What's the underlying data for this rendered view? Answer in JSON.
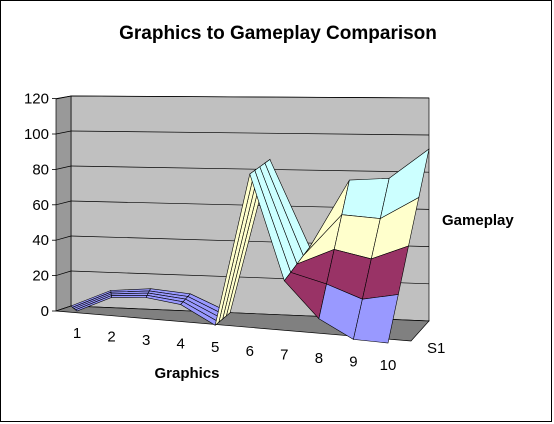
{
  "chart_data": {
    "type": "area",
    "subtype": "3d-surface",
    "title": "Graphics to Gameplay Comparison",
    "xlabel": "Graphics",
    "zlabel": "Gameplay",
    "categories": [
      "1",
      "2",
      "3",
      "4",
      "5",
      "6",
      "7",
      "8",
      "9",
      "10"
    ],
    "series": [
      {
        "name": "S1",
        "values": [
          0,
          10,
          12,
          10,
          0,
          90,
          30,
          10,
          0,
          0
        ]
      }
    ],
    "back_profile": [
      0,
      10,
      12,
      10,
      0,
      90,
      40,
      80,
      82,
      100
    ],
    "z_ticks": [
      "0",
      "20",
      "40",
      "60",
      "80",
      "100",
      "120"
    ],
    "zlim": [
      0,
      120
    ],
    "grid": true,
    "legend": "none",
    "colors": {
      "wall": "#c0c0c0",
      "floor": "#808080",
      "band_0_20": "#9999ff",
      "band_20_40": "#993366",
      "band_40_60": "#ffffcc",
      "band_60_80": "#ccffff",
      "band_80_100": "#660066",
      "band_100_120": "#ff8080"
    }
  }
}
